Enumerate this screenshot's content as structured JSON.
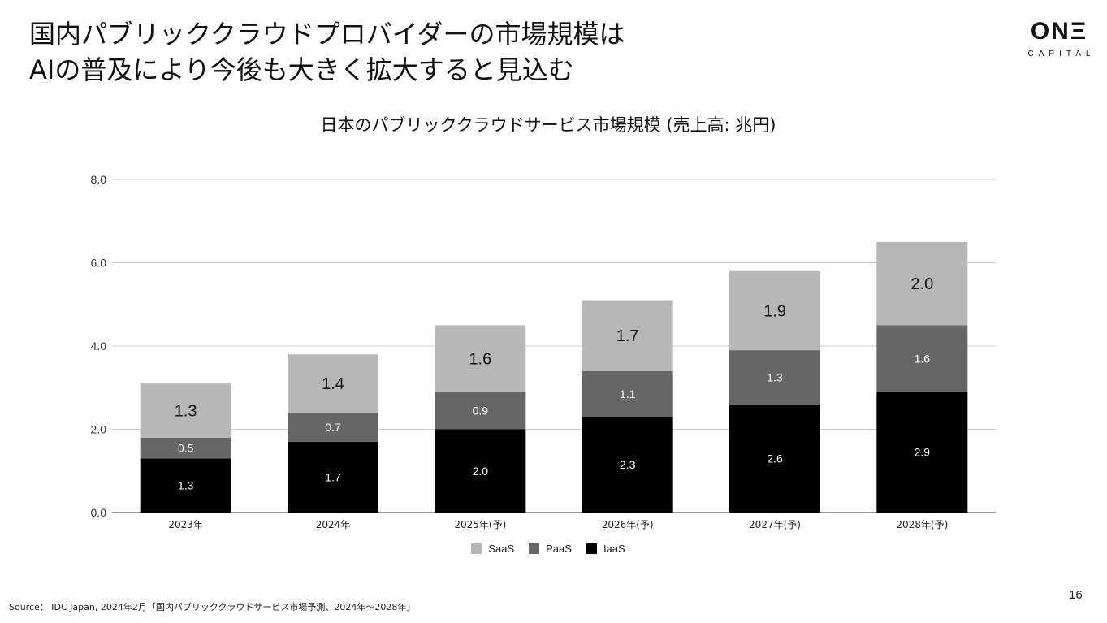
{
  "headline": {
    "line1": "国内パブリッククラウドプロバイダーの市場規模は",
    "line2": "AIの普及により今後も大きく拡大すると見込む"
  },
  "logo": {
    "main": "ONΞ",
    "sub": "CAPITAL"
  },
  "page_number": "16",
  "source": "Source： IDC Japan, 2024年2月「国内パブリッククラウドサービス市場予測、2024年～2028年」",
  "chart_data": {
    "type": "bar",
    "stacked": true,
    "title": "日本のパブリッククラウドサービス市場規模 (売上高: 兆円)",
    "xlabel": "",
    "ylabel": "",
    "ylim": [
      0,
      8
    ],
    "yticks": [
      "0.0",
      "2.0",
      "4.0",
      "6.0",
      "8.0"
    ],
    "grid": true,
    "legend_position": "bottom",
    "categories": [
      "2023年",
      "2024年",
      "2025年(予)",
      "2026年(予)",
      "2027年(予)",
      "2028年(予)"
    ],
    "series": [
      {
        "name": "IaaS",
        "color": "#000000",
        "values": [
          1.3,
          1.7,
          2.0,
          2.3,
          2.6,
          2.9
        ]
      },
      {
        "name": "PaaS",
        "color": "#666666",
        "values": [
          0.5,
          0.7,
          0.9,
          1.1,
          1.3,
          1.6
        ]
      },
      {
        "name": "SaaS",
        "color": "#b7b7b7",
        "values": [
          1.3,
          1.4,
          1.6,
          1.7,
          1.9,
          2.0
        ]
      }
    ],
    "legend_order": [
      "SaaS",
      "PaaS",
      "IaaS"
    ]
  }
}
